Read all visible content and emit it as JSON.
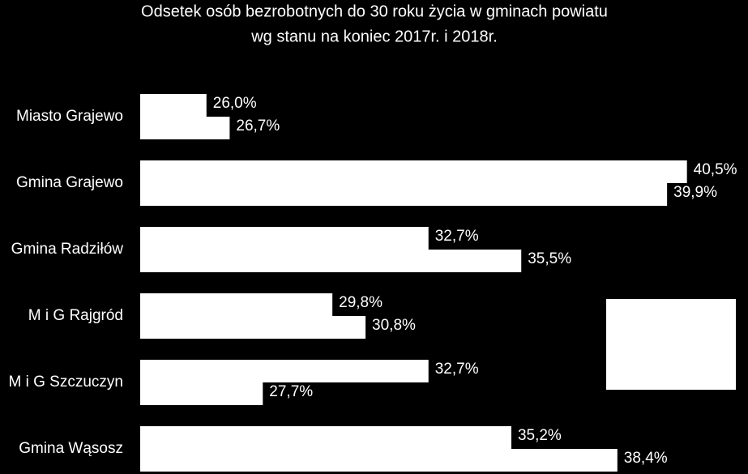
{
  "chart_data": {
    "type": "hbar",
    "title": [
      "Odsetek osób bezrobotnych do 30 roku życia w gminach powiatu",
      "wg stanu na koniec 2017r. i 2018r."
    ],
    "categories": [
      "Miasto Grajewo",
      "Gmina Grajewo",
      "Gmina Radziłów",
      "M i G Rajgród",
      "M i G Szczuczyn",
      "Gmina Wąsosz"
    ],
    "series": [
      {
        "color": "#ffffff",
        "values": [
          26.0,
          40.5,
          32.7,
          29.8,
          32.7,
          35.2
        ],
        "value_labels": [
          "26,0%",
          "40,5%",
          "32,7%",
          "29,8%",
          "32,7%",
          "35,2%"
        ]
      },
      {
        "color": "#ffffff",
        "values": [
          26.7,
          39.9,
          35.5,
          30.8,
          27.7,
          38.4
        ],
        "value_labels": [
          "26,7%",
          "39,9%",
          "35,5%",
          "30,8%",
          "27,7%",
          "38,4%"
        ]
      }
    ],
    "xlim": [
      24,
      42
    ]
  }
}
